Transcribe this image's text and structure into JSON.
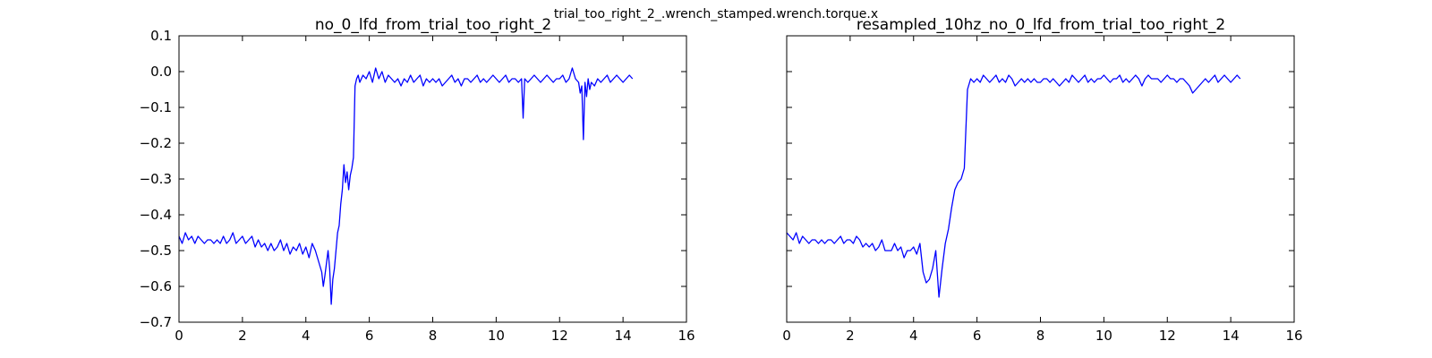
{
  "figure": {
    "suptitle": "trial_too_right_2_.wrench_stamped.wrench.torque.x"
  },
  "chart_data": [
    {
      "type": "line",
      "title": "no_0_lfd_from_trial_too_right_2",
      "xlabel": "",
      "ylabel": "",
      "xlim": [
        0,
        16
      ],
      "ylim": [
        -0.7,
        0.1
      ],
      "xticks": [
        0,
        2,
        4,
        6,
        8,
        10,
        12,
        14,
        16
      ],
      "yticks": [
        0.1,
        0.0,
        -0.1,
        -0.2,
        -0.3,
        -0.4,
        -0.5,
        -0.6,
        -0.7
      ],
      "xtick_labels": [
        "0",
        "2",
        "4",
        "6",
        "8",
        "10",
        "12",
        "14",
        "16"
      ],
      "ytick_labels": [
        "0.1",
        "0.0",
        "−0.1",
        "−0.2",
        "−0.3",
        "−0.4",
        "−0.5",
        "−0.6",
        "−0.7"
      ],
      "show_y_tick_labels": true,
      "grid": false,
      "color": "#0000ff",
      "series": [
        {
          "x": [
            0.0,
            0.1,
            0.2,
            0.3,
            0.4,
            0.5,
            0.6,
            0.7,
            0.8,
            0.9,
            1.0,
            1.1,
            1.2,
            1.3,
            1.4,
            1.5,
            1.6,
            1.7,
            1.8,
            1.9,
            2.0,
            2.1,
            2.2,
            2.3,
            2.4,
            2.5,
            2.6,
            2.7,
            2.8,
            2.9,
            3.0,
            3.1,
            3.2,
            3.3,
            3.4,
            3.5,
            3.6,
            3.7,
            3.8,
            3.9,
            4.0,
            4.1,
            4.2,
            4.3,
            4.4,
            4.5,
            4.55,
            4.6,
            4.7,
            4.75,
            4.8,
            4.85,
            4.9,
            5.0,
            5.05,
            5.1,
            5.15,
            5.2,
            5.25,
            5.3,
            5.35,
            5.4,
            5.45,
            5.5,
            5.55,
            5.6,
            5.65,
            5.7,
            5.8,
            5.9,
            6.0,
            6.1,
            6.2,
            6.3,
            6.4,
            6.5,
            6.6,
            6.7,
            6.8,
            6.9,
            7.0,
            7.1,
            7.2,
            7.3,
            7.4,
            7.5,
            7.6,
            7.7,
            7.8,
            7.9,
            8.0,
            8.1,
            8.2,
            8.3,
            8.4,
            8.5,
            8.6,
            8.7,
            8.8,
            8.9,
            9.0,
            9.1,
            9.2,
            9.3,
            9.4,
            9.5,
            9.6,
            9.7,
            9.8,
            9.9,
            10.0,
            10.1,
            10.2,
            10.3,
            10.4,
            10.5,
            10.6,
            10.7,
            10.8,
            10.85,
            10.9,
            11.0,
            11.1,
            11.2,
            11.3,
            11.4,
            11.5,
            11.6,
            11.7,
            11.8,
            11.9,
            12.0,
            12.1,
            12.2,
            12.3,
            12.4,
            12.5,
            12.6,
            12.65,
            12.7,
            12.75,
            12.8,
            12.85,
            12.9,
            12.95,
            13.0,
            13.1,
            13.2,
            13.3,
            13.4,
            13.5,
            13.6,
            13.7,
            13.8,
            13.9,
            14.0,
            14.1,
            14.2,
            14.3
          ],
          "y": [
            -0.46,
            -0.48,
            -0.45,
            -0.47,
            -0.46,
            -0.48,
            -0.46,
            -0.47,
            -0.48,
            -0.47,
            -0.47,
            -0.48,
            -0.47,
            -0.48,
            -0.46,
            -0.48,
            -0.47,
            -0.45,
            -0.48,
            -0.47,
            -0.46,
            -0.48,
            -0.47,
            -0.46,
            -0.49,
            -0.47,
            -0.49,
            -0.48,
            -0.5,
            -0.48,
            -0.5,
            -0.49,
            -0.47,
            -0.5,
            -0.48,
            -0.51,
            -0.49,
            -0.5,
            -0.48,
            -0.51,
            -0.49,
            -0.52,
            -0.48,
            -0.5,
            -0.53,
            -0.56,
            -0.6,
            -0.57,
            -0.5,
            -0.55,
            -0.65,
            -0.58,
            -0.55,
            -0.45,
            -0.43,
            -0.37,
            -0.33,
            -0.26,
            -0.31,
            -0.28,
            -0.33,
            -0.29,
            -0.27,
            -0.24,
            -0.04,
            -0.02,
            -0.01,
            -0.03,
            -0.01,
            -0.02,
            0.0,
            -0.03,
            0.01,
            -0.02,
            0.0,
            -0.03,
            -0.01,
            -0.02,
            -0.03,
            -0.02,
            -0.04,
            -0.02,
            -0.03,
            -0.01,
            -0.03,
            -0.02,
            -0.01,
            -0.04,
            -0.02,
            -0.03,
            -0.02,
            -0.03,
            -0.02,
            -0.04,
            -0.03,
            -0.02,
            -0.01,
            -0.03,
            -0.02,
            -0.04,
            -0.02,
            -0.02,
            -0.03,
            -0.02,
            -0.01,
            -0.03,
            -0.02,
            -0.03,
            -0.02,
            -0.01,
            -0.02,
            -0.03,
            -0.02,
            -0.01,
            -0.03,
            -0.02,
            -0.02,
            -0.03,
            -0.02,
            -0.13,
            -0.02,
            -0.03,
            -0.02,
            -0.01,
            -0.02,
            -0.03,
            -0.02,
            -0.01,
            -0.02,
            -0.03,
            -0.02,
            -0.02,
            -0.01,
            -0.03,
            -0.02,
            0.01,
            -0.02,
            -0.03,
            -0.06,
            -0.04,
            -0.19,
            -0.03,
            -0.07,
            -0.02,
            -0.05,
            -0.03,
            -0.04,
            -0.02,
            -0.03,
            -0.02,
            -0.01,
            -0.03,
            -0.02,
            -0.01,
            -0.02,
            -0.03,
            -0.02,
            -0.01,
            -0.02
          ]
        }
      ]
    },
    {
      "type": "line",
      "title": "resampled_10hz_no_0_lfd_from_trial_too_right_2",
      "xlabel": "",
      "ylabel": "",
      "xlim": [
        0,
        16
      ],
      "ylim": [
        -0.7,
        0.1
      ],
      "xticks": [
        0,
        2,
        4,
        6,
        8,
        10,
        12,
        14,
        16
      ],
      "yticks": [
        0.1,
        0.0,
        -0.1,
        -0.2,
        -0.3,
        -0.4,
        -0.5,
        -0.6,
        -0.7
      ],
      "xtick_labels": [
        "0",
        "2",
        "4",
        "6",
        "8",
        "10",
        "12",
        "14",
        "16"
      ],
      "show_y_tick_labels": false,
      "grid": false,
      "color": "#0000ff",
      "series": [
        {
          "x": [
            0.0,
            0.1,
            0.2,
            0.3,
            0.4,
            0.5,
            0.6,
            0.7,
            0.8,
            0.9,
            1.0,
            1.1,
            1.2,
            1.3,
            1.4,
            1.5,
            1.6,
            1.7,
            1.8,
            1.9,
            2.0,
            2.1,
            2.2,
            2.3,
            2.4,
            2.5,
            2.6,
            2.7,
            2.8,
            2.9,
            3.0,
            3.1,
            3.2,
            3.3,
            3.4,
            3.5,
            3.6,
            3.7,
            3.8,
            3.9,
            4.0,
            4.1,
            4.2,
            4.3,
            4.4,
            4.5,
            4.6,
            4.7,
            4.8,
            4.9,
            5.0,
            5.1,
            5.2,
            5.3,
            5.4,
            5.5,
            5.6,
            5.7,
            5.8,
            5.9,
            6.0,
            6.1,
            6.2,
            6.3,
            6.4,
            6.5,
            6.6,
            6.7,
            6.8,
            6.9,
            7.0,
            7.1,
            7.2,
            7.3,
            7.4,
            7.5,
            7.6,
            7.7,
            7.8,
            7.9,
            8.0,
            8.1,
            8.2,
            8.3,
            8.4,
            8.5,
            8.6,
            8.7,
            8.8,
            8.9,
            9.0,
            9.1,
            9.2,
            9.3,
            9.4,
            9.5,
            9.6,
            9.7,
            9.8,
            9.9,
            10.0,
            10.1,
            10.2,
            10.3,
            10.4,
            10.5,
            10.6,
            10.7,
            10.8,
            10.9,
            11.0,
            11.1,
            11.2,
            11.3,
            11.4,
            11.5,
            11.6,
            11.7,
            11.8,
            11.9,
            12.0,
            12.1,
            12.2,
            12.3,
            12.4,
            12.5,
            12.6,
            12.7,
            12.8,
            12.9,
            13.0,
            13.1,
            13.2,
            13.3,
            13.4,
            13.5,
            13.6,
            13.7,
            13.8,
            13.9,
            14.0,
            14.1,
            14.2,
            14.3
          ],
          "y": [
            -0.45,
            -0.46,
            -0.47,
            -0.45,
            -0.48,
            -0.46,
            -0.47,
            -0.48,
            -0.47,
            -0.47,
            -0.48,
            -0.47,
            -0.48,
            -0.47,
            -0.47,
            -0.48,
            -0.47,
            -0.46,
            -0.48,
            -0.47,
            -0.47,
            -0.48,
            -0.46,
            -0.47,
            -0.49,
            -0.48,
            -0.49,
            -0.48,
            -0.5,
            -0.49,
            -0.47,
            -0.5,
            -0.5,
            -0.5,
            -0.48,
            -0.5,
            -0.49,
            -0.52,
            -0.5,
            -0.5,
            -0.49,
            -0.51,
            -0.48,
            -0.56,
            -0.59,
            -0.58,
            -0.55,
            -0.5,
            -0.63,
            -0.55,
            -0.48,
            -0.44,
            -0.38,
            -0.33,
            -0.31,
            -0.3,
            -0.27,
            -0.05,
            -0.02,
            -0.03,
            -0.02,
            -0.03,
            -0.01,
            -0.02,
            -0.03,
            -0.02,
            -0.01,
            -0.03,
            -0.02,
            -0.03,
            -0.01,
            -0.02,
            -0.04,
            -0.03,
            -0.02,
            -0.03,
            -0.02,
            -0.03,
            -0.02,
            -0.03,
            -0.03,
            -0.02,
            -0.02,
            -0.03,
            -0.02,
            -0.03,
            -0.04,
            -0.03,
            -0.02,
            -0.03,
            -0.01,
            -0.02,
            -0.03,
            -0.02,
            -0.01,
            -0.03,
            -0.02,
            -0.03,
            -0.02,
            -0.02,
            -0.01,
            -0.02,
            -0.03,
            -0.02,
            -0.02,
            -0.01,
            -0.03,
            -0.02,
            -0.03,
            -0.02,
            -0.01,
            -0.02,
            -0.04,
            -0.02,
            -0.01,
            -0.02,
            -0.02,
            -0.02,
            -0.03,
            -0.02,
            -0.01,
            -0.02,
            -0.02,
            -0.03,
            -0.02,
            -0.02,
            -0.03,
            -0.04,
            -0.06,
            -0.05,
            -0.04,
            -0.03,
            -0.02,
            -0.03,
            -0.02,
            -0.01,
            -0.03,
            -0.02,
            -0.01,
            -0.02,
            -0.03,
            -0.02,
            -0.01,
            -0.02
          ]
        }
      ]
    }
  ]
}
